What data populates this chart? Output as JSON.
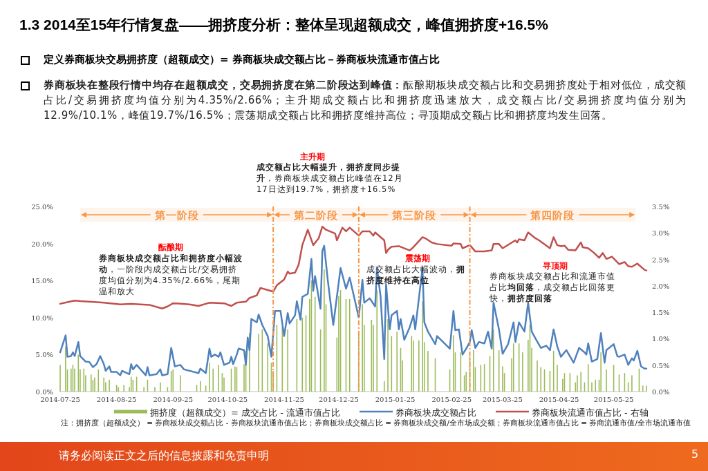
{
  "chart_data": {
    "type": "bar",
    "title": "1.3 2014至15年行情复盘——拥挤度分析：整体呈现超额成交，峰值拥挤度+16.5%",
    "subtitle": "定义券商板块交易拥挤度（超额成交）= 券商板块成交额占比－券商板块流通市值占比",
    "xlim": [
      "2014-07-25",
      "2015-06-12"
    ],
    "xticks": [
      "2014-07-25",
      "2014-08-25",
      "2014-09-25",
      "2014-10-25",
      "2014-11-25",
      "2014-12-25",
      "2015-01-25",
      "2015-02-25",
      "2015-03-25",
      "2015-04-25",
      "2015-05-25"
    ],
    "ylim": [
      0,
      25
    ],
    "yticks": [
      {
        "value": 0,
        "label": "0.0%"
      },
      {
        "value": 5,
        "label": "5.0%"
      },
      {
        "value": 10,
        "label": "10.0%"
      },
      {
        "value": 15,
        "label": "15.0%"
      },
      {
        "value": 20,
        "label": "20.0%"
      },
      {
        "value": 25,
        "label": "25.0%"
      }
    ],
    "y2lim": [
      0,
      3.5
    ],
    "y2ticks": [
      {
        "value": 0,
        "label": "0.0%"
      },
      {
        "value": 0.5,
        "label": "0.5%"
      },
      {
        "value": 1,
        "label": "1.0%"
      },
      {
        "value": 1.5,
        "label": "1.5%"
      },
      {
        "value": 2,
        "label": "2.0%"
      },
      {
        "value": 2.5,
        "label": "2.5%"
      },
      {
        "value": 3,
        "label": "3.0%"
      },
      {
        "value": 3.5,
        "label": "3.5%"
      }
    ],
    "legend": "bottom",
    "series": [
      {
        "name": "拥挤度（超额成交）= 成交占比 - 流通市值占比",
        "color": "#9bbb59",
        "x": [
          "2014-07-25",
          "2014-07-28",
          "2014-07-29",
          "2014-07-31",
          "2014-08-01",
          "2014-08-02",
          "2014-08-04",
          "2014-08-05",
          "2014-08-07",
          "2014-08-08",
          "2014-08-11",
          "2014-08-12",
          "2014-08-13",
          "2014-08-15",
          "2014-08-18",
          "2014-08-19",
          "2014-08-21",
          "2014-08-25",
          "2014-08-26",
          "2014-08-29",
          "2014-09-01",
          "2014-09-02",
          "2014-09-03",
          "2014-09-05",
          "2014-09-09",
          "2014-09-11",
          "2014-09-15",
          "2014-09-18",
          "2014-09-22",
          "2014-09-24",
          "2014-09-25",
          "2014-09-29",
          "2014-10-08",
          "2014-10-10",
          "2014-10-13",
          "2014-10-15",
          "2014-10-17",
          "2014-10-20",
          "2014-10-22",
          "2014-10-23",
          "2014-10-27",
          "2014-10-29",
          "2014-10-30",
          "2014-11-03",
          "2014-11-04",
          "2014-11-06",
          "2014-11-11",
          "2014-11-13",
          "2014-11-16",
          "2014-11-18",
          "2014-11-19",
          "2014-11-21",
          "2014-11-24",
          "2014-11-27",
          "2014-12-02",
          "2014-12-05",
          "2014-12-07",
          "2014-12-09",
          "2014-12-10",
          "2014-12-12",
          "2014-12-15",
          "2014-12-17",
          "2014-12-18",
          "2014-12-24",
          "2014-12-25",
          "2014-12-26",
          "2014-12-29",
          "2014-12-31",
          "2015-01-05",
          "2015-01-07",
          "2015-01-08",
          "2015-01-12",
          "2015-01-13",
          "2015-01-15",
          "2015-01-19",
          "2015-01-21",
          "2015-01-23",
          "2015-01-26",
          "2015-01-28",
          "2015-01-29",
          "2015-02-03",
          "2015-02-04",
          "2015-02-07",
          "2015-02-09",
          "2015-02-10",
          "2015-02-12",
          "2015-02-16",
          "2015-02-24",
          "2015-02-26",
          "2015-02-27",
          "2015-03-02",
          "2015-03-04",
          "2015-03-05",
          "2015-03-07",
          "2015-03-09",
          "2015-03-10",
          "2015-03-13",
          "2015-03-15",
          "2015-03-18",
          "2015-03-20",
          "2015-03-23",
          "2015-03-25",
          "2015-03-26",
          "2015-03-30",
          "2015-03-31",
          "2015-04-03",
          "2015-04-05",
          "2015-04-08",
          "2015-04-09",
          "2015-04-10",
          "2015-04-13",
          "2015-04-15",
          "2015-04-17",
          "2015-04-20",
          "2015-04-22",
          "2015-04-24",
          "2015-04-27",
          "2015-04-28",
          "2015-05-01",
          "2015-05-04",
          "2015-05-05",
          "2015-05-07",
          "2015-05-09",
          "2015-05-11",
          "2015-05-13",
          "2015-05-15",
          "2015-05-17",
          "2015-05-18",
          "2015-05-21",
          "2015-05-25",
          "2015-05-28",
          "2015-05-31",
          "2015-06-02",
          "2015-06-04",
          "2015-06-08",
          "2015-06-10",
          "2015-06-12"
        ],
        "values": [
          3.6,
          6.1,
          3.0,
          3.1,
          3.6,
          3.1,
          5.0,
          3.0,
          3.1,
          2.2,
          2.3,
          1.6,
          1.9,
          3.0,
          1.9,
          1.25,
          1.6,
          0.9,
          0.6,
          0.9,
          0.6,
          2.0,
          1.6,
          2.0,
          0.6,
          1.6,
          0.6,
          1.25,
          0.6,
          2.8,
          3.0,
          2.2,
          0.9,
          1.4,
          0.8,
          3.9,
          3.1,
          3.6,
          2.5,
          1.9,
          3.1,
          3.4,
          3.3,
          3.7,
          5.5,
          7.9,
          7.8,
          8.4,
          6.5,
          3.9,
          2.8,
          9.0,
          8.7,
          8.4,
          9.8,
          10.0,
          10.3,
          12.5,
          15.0,
          12.8,
          8.4,
          16.5,
          11.8,
          7.3,
          12.9,
          13.7,
          12.5,
          12.5,
          7.8,
          11.8,
          9.0,
          9.7,
          9.0,
          13.7,
          1.4,
          9.8,
          7.5,
          8.1,
          5.9,
          4.2,
          7.5,
          6.9,
          6.9,
          12.2,
          6.7,
          5.5,
          4.5,
          3.0,
          7.6,
          5.3,
          5.3,
          2.2,
          2.65,
          4.7,
          5.6,
          3.3,
          3.6,
          3.7,
          4.8,
          8.4,
          5.6,
          3.4,
          2.5,
          4.5,
          6.5,
          6.5,
          5.3,
          7.0,
          9.0,
          5.9,
          4.2,
          3.3,
          3.0,
          2.8,
          5.5,
          3.6,
          1.7,
          2.5,
          2.5,
          1.25,
          2.2,
          2.65,
          1.25,
          3.7,
          1.25,
          1.6,
          1.6,
          5.3,
          3.0,
          3.6,
          2.3,
          2.5,
          1.25,
          2.2,
          3.1,
          0.8,
          0.8
        ]
      },
      {
        "name": "券商板块成交额占比",
        "type": "line",
        "color": "#4f81bd",
        "x": [
          "2014-07-25",
          "2014-07-28",
          "2014-07-29",
          "2014-07-31",
          "2014-08-01",
          "2014-08-02",
          "2014-08-04",
          "2014-08-05",
          "2014-08-08",
          "2014-08-10",
          "2014-08-12",
          "2014-08-14",
          "2014-08-16",
          "2014-08-18",
          "2014-08-19",
          "2014-08-21",
          "2014-08-22",
          "2014-08-25",
          "2014-08-27",
          "2014-08-28",
          "2014-09-01",
          "2014-09-02",
          "2014-09-03",
          "2014-09-05",
          "2014-09-10",
          "2014-09-11",
          "2014-09-12",
          "2014-09-16",
          "2014-09-18",
          "2014-09-19",
          "2014-09-22",
          "2014-09-24",
          "2014-09-26",
          "2014-09-29",
          "2014-10-01",
          "2014-10-09",
          "2014-10-10",
          "2014-10-13",
          "2014-10-15",
          "2014-10-16",
          "2014-10-18",
          "2014-10-20",
          "2014-10-21",
          "2014-10-23",
          "2014-10-26",
          "2014-10-27",
          "2014-10-28",
          "2014-10-30",
          "2014-10-31",
          "2014-11-03",
          "2014-11-04",
          "2014-11-05",
          "2014-11-06",
          "2014-11-07",
          "2014-11-10",
          "2014-11-11",
          "2014-11-13",
          "2014-11-16",
          "2014-11-18",
          "2014-11-20",
          "2014-11-23",
          "2014-11-25",
          "2014-11-27",
          "2014-11-28",
          "2014-12-01",
          "2014-12-02",
          "2014-12-04",
          "2014-12-05",
          "2014-12-08",
          "2014-12-10",
          "2014-12-11",
          "2014-12-12",
          "2014-12-15",
          "2014-12-16",
          "2014-12-17",
          "2014-12-19",
          "2014-12-22",
          "2014-12-26",
          "2014-12-29",
          "2014-12-31",
          "2015-01-05",
          "2015-01-07",
          "2015-01-08",
          "2015-01-11",
          "2015-01-14",
          "2015-01-15",
          "2015-01-17",
          "2015-01-19",
          "2015-01-20",
          "2015-01-22",
          "2015-01-23",
          "2015-01-26",
          "2015-01-27",
          "2015-01-28",
          "2015-01-30",
          "2015-02-02",
          "2015-02-04",
          "2015-02-05",
          "2015-02-09",
          "2015-02-10",
          "2015-02-12",
          "2015-02-16",
          "2015-02-17",
          "2015-02-24",
          "2015-02-26",
          "2015-02-27",
          "2015-03-01",
          "2015-03-03",
          "2015-03-05",
          "2015-03-07",
          "2015-03-08",
          "2015-03-10",
          "2015-03-12",
          "2015-03-15",
          "2015-03-17",
          "2015-03-19",
          "2015-03-20",
          "2015-03-23",
          "2015-03-25",
          "2015-03-28",
          "2015-03-31",
          "2015-04-01",
          "2015-04-03",
          "2015-04-06",
          "2015-04-08",
          "2015-04-10",
          "2015-04-12",
          "2015-04-15",
          "2015-04-18",
          "2015-04-20",
          "2015-04-22",
          "2015-04-24",
          "2015-04-26",
          "2015-04-29",
          "2015-05-03",
          "2015-05-06",
          "2015-05-09",
          "2015-05-10",
          "2015-05-11",
          "2015-05-13",
          "2015-05-16",
          "2015-05-18",
          "2015-05-20",
          "2015-05-21",
          "2015-05-25",
          "2015-05-27",
          "2015-05-28",
          "2015-05-31",
          "2015-06-02",
          "2015-06-04",
          "2015-06-05",
          "2015-06-07",
          "2015-06-09",
          "2015-06-11",
          "2015-06-12"
        ],
        "values": [
          5.3,
          7.6,
          4.7,
          4.8,
          5.3,
          4.8,
          6.7,
          4.8,
          4.05,
          4.0,
          3.3,
          3.7,
          4.8,
          3.7,
          2.8,
          3.4,
          2.65,
          2.65,
          2.2,
          2.8,
          2.35,
          3.7,
          3.0,
          3.6,
          2.2,
          3.3,
          2.2,
          2.35,
          3.0,
          2.2,
          2.35,
          5.9,
          3.4,
          3.6,
          3.0,
          2.5,
          3.1,
          2.5,
          5.8,
          4.7,
          5.0,
          4.7,
          5.3,
          3.6,
          3.9,
          4.7,
          3.7,
          5.0,
          5.8,
          5.6,
          3.6,
          7.3,
          5.6,
          9.8,
          9.35,
          10.4,
          9.0,
          7.5,
          4.7,
          10.9,
          10.9,
          7.5,
          10.6,
          9.2,
          10.3,
          12.2,
          9.7,
          12.8,
          13.2,
          17.9,
          13.6,
          15.6,
          11.2,
          19.0,
          19.7,
          15.0,
          9.0,
          16.7,
          13.9,
          15.4,
          10.0,
          15.1,
          12.0,
          12.6,
          11.5,
          16.7,
          12.8,
          4.4,
          14.5,
          8.4,
          10.3,
          10.9,
          8.4,
          9.8,
          7.0,
          8.7,
          10.3,
          8.4,
          16.7,
          9.35,
          8.1,
          6.4,
          7.5,
          5.8,
          10.9,
          8.3,
          8.4,
          5.0,
          5.8,
          6.7,
          8.3,
          5.9,
          6.7,
          6.5,
          8.1,
          5.8,
          12.0,
          8.4,
          5.1,
          6.4,
          9.35,
          6.7,
          9.35,
          8.1,
          12.0,
          8.1,
          7.2,
          5.9,
          6.2,
          5.6,
          8.4,
          6.1,
          4.7,
          5.6,
          3.9,
          5.9,
          5.3,
          5.0,
          6.5,
          4.05,
          4.4,
          7.9,
          3.9,
          5.6,
          6.4,
          4.8,
          4.7,
          5.0,
          3.6,
          4.5,
          4.2,
          5.5,
          3.4,
          3.1,
          3.1
        ]
      },
      {
        "name": "券商板块流通市值占比 - 右轴",
        "type": "line",
        "axis": "y2",
        "color": "#c0504d",
        "x": [
          "2014-07-25",
          "2014-07-29",
          "2014-08-02",
          "2014-08-05",
          "2014-08-14",
          "2014-08-18",
          "2014-08-27",
          "2014-09-02",
          "2014-09-12",
          "2014-09-19",
          "2014-09-22",
          "2014-09-25",
          "2014-10-04",
          "2014-10-09",
          "2014-10-15",
          "2014-10-23",
          "2014-10-27",
          "2014-10-30",
          "2014-11-04",
          "2014-11-06",
          "2014-11-10",
          "2014-11-12",
          "2014-11-16",
          "2014-11-19",
          "2014-11-21",
          "2014-11-25",
          "2014-11-27",
          "2014-11-28",
          "2014-12-01",
          "2014-12-03",
          "2014-12-05",
          "2014-12-08",
          "2014-12-11",
          "2014-12-14",
          "2014-12-16",
          "2014-12-18",
          "2014-12-23",
          "2014-12-24",
          "2014-12-27",
          "2014-12-29",
          "2014-12-31",
          "2015-01-05",
          "2015-01-07",
          "2015-01-11",
          "2015-01-13",
          "2015-01-14",
          "2015-01-19",
          "2015-01-20",
          "2015-01-21",
          "2015-01-23",
          "2015-01-27",
          "2015-02-02",
          "2015-02-04",
          "2015-02-09",
          "2015-02-11",
          "2015-02-14",
          "2015-02-17",
          "2015-02-25",
          "2015-02-26",
          "2015-03-02",
          "2015-03-03",
          "2015-03-07",
          "2015-03-10",
          "2015-03-15",
          "2015-03-19",
          "2015-03-20",
          "2015-03-23",
          "2015-03-25",
          "2015-04-01",
          "2015-04-02",
          "2015-04-03",
          "2015-04-06",
          "2015-04-08",
          "2015-04-12",
          "2015-04-14",
          "2015-04-20",
          "2015-04-22",
          "2015-04-24",
          "2015-04-26",
          "2015-04-28",
          "2015-04-30",
          "2015-05-04",
          "2015-05-07",
          "2015-05-08",
          "2015-05-11",
          "2015-05-14",
          "2015-05-17",
          "2015-05-19",
          "2015-05-21",
          "2015-05-24",
          "2015-05-28",
          "2015-05-31",
          "2015-06-02",
          "2015-06-04",
          "2015-06-05",
          "2015-06-07",
          "2015-06-11",
          "2015-06-12"
        ],
        "values": [
          1.66,
          1.69,
          1.72,
          1.71,
          1.69,
          1.68,
          1.65,
          1.66,
          1.64,
          1.57,
          1.61,
          1.67,
          1.65,
          1.62,
          1.68,
          1.67,
          1.62,
          1.68,
          1.7,
          1.77,
          1.82,
          1.96,
          1.92,
          1.89,
          2.01,
          2.12,
          2.27,
          2.23,
          2.25,
          2.4,
          2.77,
          3.06,
          2.77,
          2.9,
          3.12,
          3.06,
          2.99,
          2.86,
          3.1,
          3.03,
          3.1,
          2.95,
          3.03,
          3.03,
          2.95,
          3.01,
          2.86,
          2.62,
          2.68,
          2.74,
          2.75,
          2.67,
          2.73,
          2.92,
          2.89,
          2.82,
          2.79,
          2.76,
          2.8,
          2.79,
          2.71,
          2.77,
          2.65,
          2.65,
          2.67,
          2.79,
          2.79,
          2.71,
          2.86,
          2.82,
          2.88,
          2.86,
          3.01,
          2.9,
          2.86,
          2.71,
          2.92,
          2.77,
          2.75,
          2.76,
          2.68,
          2.67,
          2.82,
          2.73,
          2.71,
          2.63,
          2.53,
          2.62,
          2.51,
          2.55,
          2.41,
          2.45,
          2.37,
          2.36,
          2.38,
          2.42,
          2.3,
          2.29
        ]
      }
    ],
    "ref_lines": [
      {
        "axis": "x",
        "value": "2014-11-19",
        "label": null,
        "color": "#f79646",
        "line_style": "dashed"
      },
      {
        "axis": "x",
        "value": "2015-01-05",
        "label": null,
        "color": "#f79646",
        "line_style": "dashed"
      },
      {
        "axis": "x",
        "value": "2015-03-07",
        "label": null,
        "color": "#f79646",
        "line_style": "dashed"
      }
    ],
    "annotations": [
      "酝酿期",
      "券商板块成交额占比和拥挤度小幅波动",
      "，一阶段内成交额占比/交易拥挤度均值分别为4.35%/2.66%，尾期温和放大",
      "主升期",
      "成交额占比大幅提升，拥挤度同步提升",
      "，券商板块成交额占比峰值在12月17日达到19.7%，拥挤度+16.5%",
      "震荡期",
      "成交额占比大幅波动，",
      "拥挤度维持在高位",
      "寻顶期",
      "券商板块成交额占比和流通市值占比",
      "均回落",
      "，成交额占比回落更快，",
      "拥挤度回落",
      "券商板块在整段行情中均存在超额成交，交易拥挤度在第二阶段达到峰值：",
      "酝酿期板块成交额占比和交易拥挤度处于相对低位，成交额占比/交易拥挤度均值分别为4.35%/2.66%；主升期成交额占比和拥挤度迅速放大，成交额占比/交易拥挤度均值分别为12.9%/10.1%，峰值19.7%/16.5%；震荡期成交额占比和拥挤度维持高位；寻顶期成交额占比和拥挤度均发生回落。",
      "注：拥挤度（超额成交） = 券商板块成交额占比 - 券商板块流通市值占比；券商板块成交额占比 = 券商板块成交额/全市场成交额；券商板块流通市值占比 = 券商流通市值/全市场流通市值",
      "请务必阅读正文之后的信息披露和免责申明",
      "5"
    ],
    "bands": [
      {
        "axis": "x",
        "from": "2014-08-05",
        "to": "2014-11-19",
        "label": "第一阶段",
        "color": "#f79646"
      },
      {
        "axis": "x",
        "from": "2014-11-19",
        "to": "2015-01-05",
        "label": "第二阶段",
        "color": "#f79646"
      },
      {
        "axis": "x",
        "from": "2015-01-05",
        "to": "2015-03-07",
        "label": "第三阶段",
        "color": "#f79646"
      },
      {
        "axis": "x",
        "from": "2015-03-07",
        "to": "2015-06-06",
        "label": "第四阶段",
        "color": "#f79646"
      }
    ]
  }
}
